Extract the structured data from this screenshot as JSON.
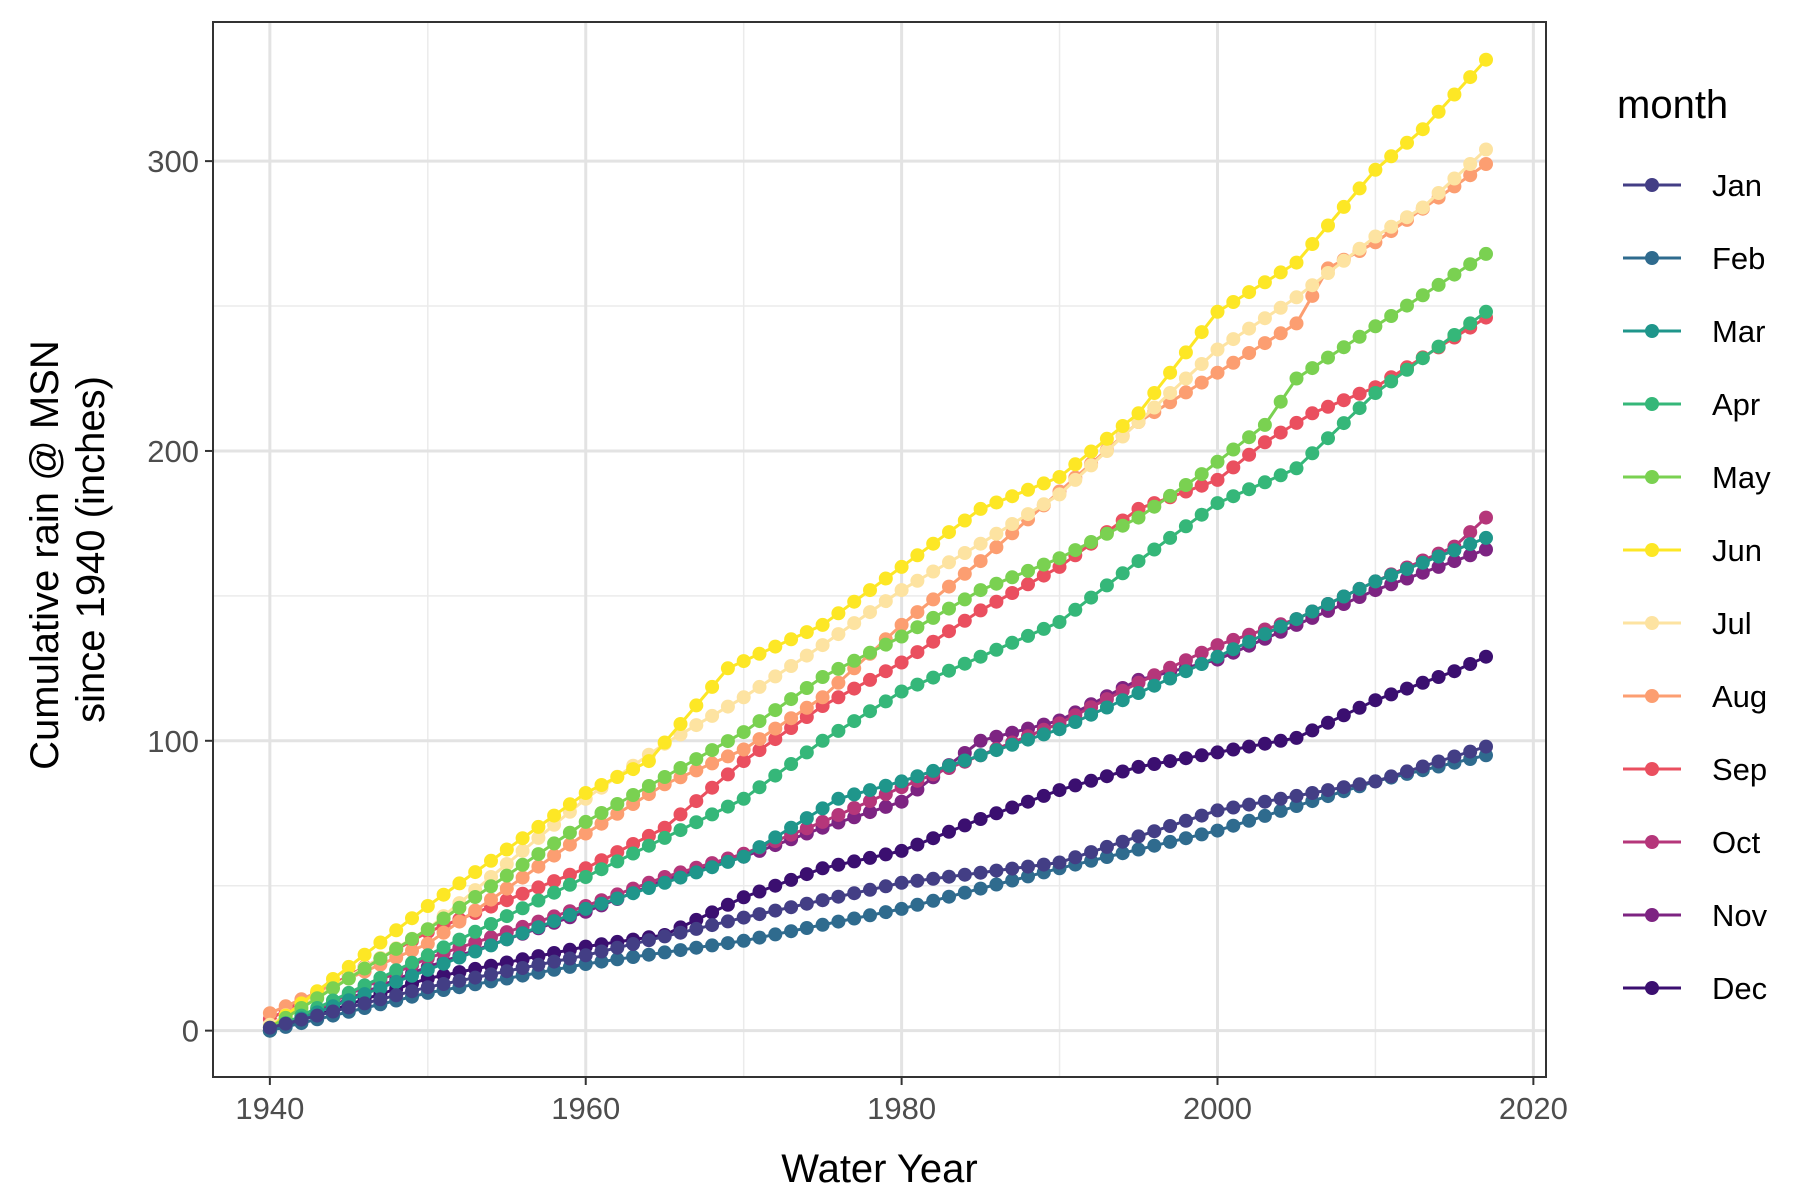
{
  "chart_data": {
    "type": "line",
    "xlabel": "Water Year",
    "ylabel_lines": [
      "Cumulative rain @ MSN",
      "since 1940 (inches)"
    ],
    "xlim": [
      1936.4,
      2020.8
    ],
    "ylim": [
      -16,
      348
    ],
    "x_ticks": [
      1940,
      1960,
      1980,
      2000,
      2020
    ],
    "y_ticks": [
      0,
      100,
      200,
      300
    ],
    "x_tick_labels": [
      "1940",
      "1960",
      "1980",
      "2000",
      "2020"
    ],
    "y_tick_labels": [
      "0",
      "100",
      "200",
      "300"
    ],
    "grid": true,
    "legend": {
      "title": "month",
      "placement": "right"
    },
    "series": [
      {
        "name": "Jan",
        "color": "#433e85",
        "anchors": [
          [
            1940,
            1
          ],
          [
            1950,
            15
          ],
          [
            1960,
            26
          ],
          [
            1970,
            39
          ],
          [
            1980,
            51
          ],
          [
            1990,
            58
          ],
          [
            2000,
            76
          ],
          [
            2010,
            86
          ],
          [
            2017,
            98
          ]
        ]
      },
      {
        "name": "Feb",
        "color": "#2f6b8e",
        "anchors": [
          [
            1940,
            0
          ],
          [
            1950,
            13
          ],
          [
            1960,
            23
          ],
          [
            1970,
            31
          ],
          [
            1980,
            42
          ],
          [
            1990,
            56
          ],
          [
            2000,
            69
          ],
          [
            2010,
            86
          ],
          [
            2017,
            95
          ]
        ]
      },
      {
        "name": "Mar",
        "color": "#1f968b",
        "anchors": [
          [
            1940,
            0
          ],
          [
            1950,
            21
          ],
          [
            1960,
            42
          ],
          [
            1970,
            60
          ],
          [
            1976,
            80
          ],
          [
            1980,
            86
          ],
          [
            1990,
            104
          ],
          [
            2000,
            129
          ],
          [
            2010,
            155
          ],
          [
            2017,
            170
          ]
        ]
      },
      {
        "name": "Apr",
        "color": "#35b779",
        "anchors": [
          [
            1940,
            0
          ],
          [
            1950,
            26
          ],
          [
            1960,
            53
          ],
          [
            1970,
            80
          ],
          [
            1975,
            100
          ],
          [
            1980,
            117
          ],
          [
            1990,
            141
          ],
          [
            1995,
            162
          ],
          [
            2000,
            182
          ],
          [
            2005,
            194
          ],
          [
            2010,
            220
          ],
          [
            2017,
            248
          ]
        ]
      },
      {
        "name": "May",
        "color": "#7ad151",
        "anchors": [
          [
            1940,
            1
          ],
          [
            1950,
            35
          ],
          [
            1960,
            72
          ],
          [
            1970,
            103
          ],
          [
            1975,
            122
          ],
          [
            1980,
            136
          ],
          [
            1985,
            152
          ],
          [
            1990,
            163
          ],
          [
            1995,
            177
          ],
          [
            1999,
            192
          ],
          [
            2003,
            209
          ],
          [
            2005,
            225
          ],
          [
            2010,
            243
          ],
          [
            2017,
            268
          ]
        ]
      },
      {
        "name": "Jun",
        "color": "#fde725",
        "anchors": [
          [
            1940,
            1
          ],
          [
            1950,
            43
          ],
          [
            1960,
            82
          ],
          [
            1964,
            93
          ],
          [
            1969,
            125
          ],
          [
            1975,
            140
          ],
          [
            1980,
            160
          ],
          [
            1985,
            180
          ],
          [
            1990,
            191
          ],
          [
            1995,
            213
          ],
          [
            2000,
            248
          ],
          [
            2005,
            265
          ],
          [
            2010,
            297
          ],
          [
            2013,
            311
          ],
          [
            2017,
            335
          ]
        ]
      },
      {
        "name": "Jul",
        "color": "#fde3a1",
        "anchors": [
          [
            1940,
            2
          ],
          [
            1950,
            35
          ],
          [
            1960,
            80
          ],
          [
            1965,
            99
          ],
          [
            1970,
            115
          ],
          [
            1975,
            133
          ],
          [
            1980,
            152
          ],
          [
            1985,
            168
          ],
          [
            1990,
            185
          ],
          [
            1995,
            210
          ],
          [
            2000,
            235
          ],
          [
            2005,
            253
          ],
          [
            2010,
            274
          ],
          [
            2013,
            284
          ],
          [
            2017,
            304
          ]
        ]
      },
      {
        "name": "Aug",
        "color": "#fc9e71",
        "anchors": [
          [
            1940,
            6
          ],
          [
            1950,
            30
          ],
          [
            1960,
            68
          ],
          [
            1965,
            85
          ],
          [
            1970,
            97
          ],
          [
            1975,
            115
          ],
          [
            1980,
            140
          ],
          [
            1985,
            162
          ],
          [
            1990,
            186
          ],
          [
            1995,
            210
          ],
          [
            2000,
            227
          ],
          [
            2005,
            244
          ],
          [
            2007,
            263
          ],
          [
            2010,
            272
          ],
          [
            2017,
            299
          ]
        ]
      },
      {
        "name": "Sep",
        "color": "#ea4f5f",
        "anchors": [
          [
            1940,
            4
          ],
          [
            1950,
            34
          ],
          [
            1960,
            56
          ],
          [
            1965,
            70
          ],
          [
            1970,
            93
          ],
          [
            1975,
            112
          ],
          [
            1980,
            127
          ],
          [
            1985,
            145
          ],
          [
            1990,
            160
          ],
          [
            1995,
            180
          ],
          [
            2000,
            190
          ],
          [
            2003,
            203
          ],
          [
            2006,
            213
          ],
          [
            2010,
            222
          ],
          [
            2017,
            246
          ]
        ]
      },
      {
        "name": "Oct",
        "color": "#b5367a",
        "anchors": [
          [
            1940,
            0
          ],
          [
            1950,
            25
          ],
          [
            1960,
            43
          ],
          [
            1965,
            53
          ],
          [
            1970,
            61
          ],
          [
            1975,
            72
          ],
          [
            1980,
            84
          ],
          [
            1985,
            95
          ],
          [
            1990,
            106
          ],
          [
            1995,
            120
          ],
          [
            2000,
            133
          ],
          [
            2005,
            142
          ],
          [
            2010,
            155
          ],
          [
            2015,
            167
          ],
          [
            2017,
            177
          ]
        ]
      },
      {
        "name": "Nov",
        "color": "#7d2482",
        "anchors": [
          [
            1940,
            0
          ],
          [
            1950,
            22
          ],
          [
            1960,
            41
          ],
          [
            1965,
            52
          ],
          [
            1970,
            60
          ],
          [
            1975,
            70
          ],
          [
            1980,
            79
          ],
          [
            1985,
            100
          ],
          [
            1990,
            107
          ],
          [
            1995,
            121
          ],
          [
            2000,
            128
          ],
          [
            2005,
            140
          ],
          [
            2010,
            152
          ],
          [
            2017,
            166
          ]
        ]
      },
      {
        "name": "Dec",
        "color": "#3b0f70",
        "anchors": [
          [
            1940,
            0
          ],
          [
            1950,
            18
          ],
          [
            1960,
            29
          ],
          [
            1965,
            33
          ],
          [
            1970,
            46
          ],
          [
            1975,
            56
          ],
          [
            1980,
            62
          ],
          [
            1985,
            73
          ],
          [
            1990,
            83
          ],
          [
            1995,
            91
          ],
          [
            2000,
            96
          ],
          [
            2005,
            101
          ],
          [
            2010,
            114
          ],
          [
            2015,
            124
          ],
          [
            2017,
            129
          ]
        ]
      }
    ]
  }
}
